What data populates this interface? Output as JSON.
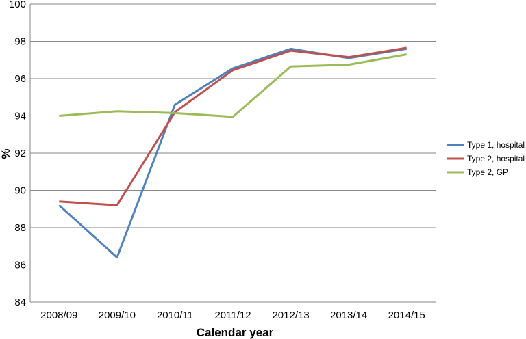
{
  "chart_data": {
    "type": "line",
    "xlabel": "Calendar year",
    "ylabel": "%",
    "categories": [
      "2008/09",
      "2009/10",
      "2010/11",
      "2011/12",
      "2012/13",
      "2013/14",
      "2014/15"
    ],
    "ylim": [
      84,
      100
    ],
    "yticks": [
      84,
      86,
      88,
      90,
      92,
      94,
      96,
      98,
      100
    ],
    "grid": "horizontal",
    "legend_position": "right",
    "series": [
      {
        "name": "Type 1, hospital",
        "color": "#4f81bd",
        "values": [
          89.2,
          86.4,
          94.6,
          96.55,
          97.6,
          97.1,
          97.6
        ]
      },
      {
        "name": "Type 2, hospital",
        "color": "#c0504d",
        "values": [
          89.4,
          89.2,
          94.2,
          96.45,
          97.5,
          97.15,
          97.65
        ]
      },
      {
        "name": "Type 2, GP",
        "color": "#9bbb59",
        "values": [
          94.0,
          94.25,
          94.15,
          93.95,
          96.65,
          96.75,
          97.3
        ]
      }
    ]
  }
}
